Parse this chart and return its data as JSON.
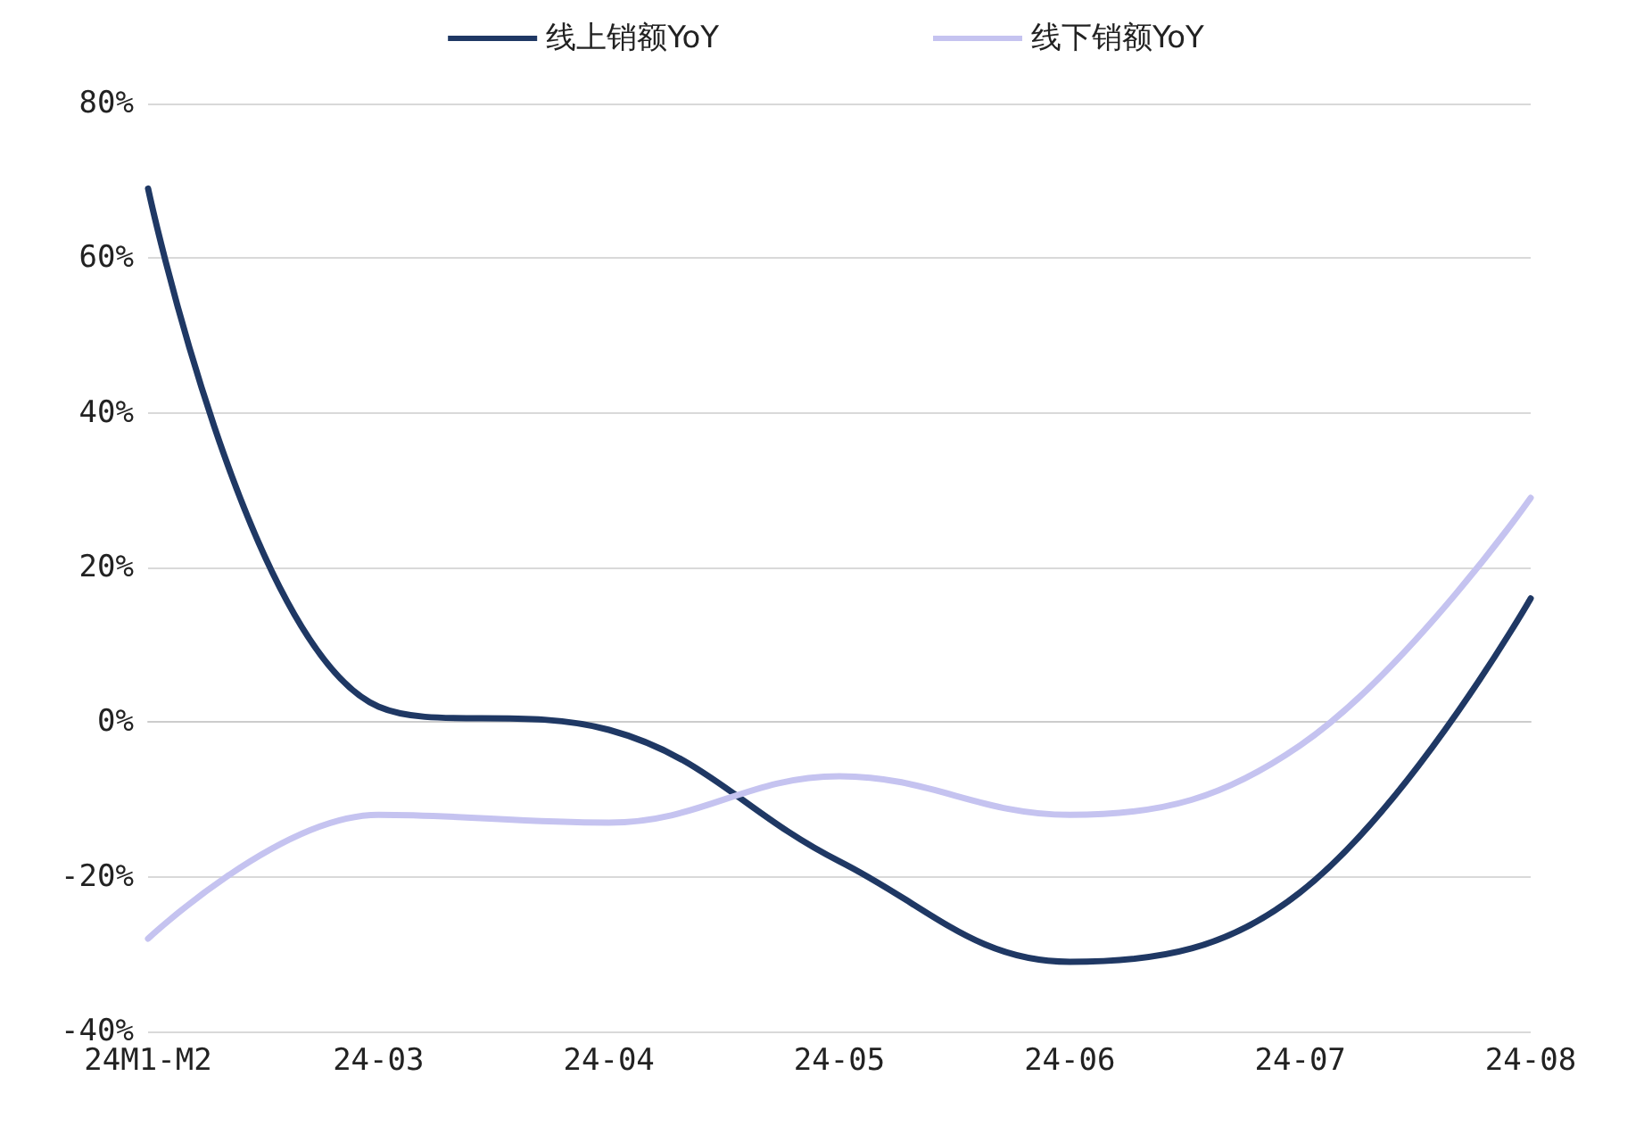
{
  "chart_data": {
    "type": "line",
    "categories": [
      "24M1-M2",
      "24-03",
      "24-04",
      "24-05",
      "24-06",
      "24-07",
      "24-08"
    ],
    "series": [
      {
        "name": "线上销额YoY",
        "color": "#1f3864",
        "values": [
          69,
          2,
          -1,
          -18,
          -31,
          -22,
          16
        ]
      },
      {
        "name": "线下销额YoY",
        "color": "#c5c3f0",
        "values": [
          -28,
          -12,
          -13,
          -7,
          -12,
          -3,
          29
        ]
      }
    ],
    "ylim": [
      -40,
      80
    ],
    "yticks": [
      {
        "value": -40,
        "label": "-40%"
      },
      {
        "value": -20,
        "label": "-20%"
      },
      {
        "value": 0,
        "label": "0%"
      },
      {
        "value": 20,
        "label": "20%"
      },
      {
        "value": 40,
        "label": "40%"
      },
      {
        "value": 60,
        "label": "60%"
      },
      {
        "value": 80,
        "label": "80%"
      }
    ],
    "grid": "y",
    "legend": "top",
    "marker": "none",
    "line_style": "solid"
  }
}
